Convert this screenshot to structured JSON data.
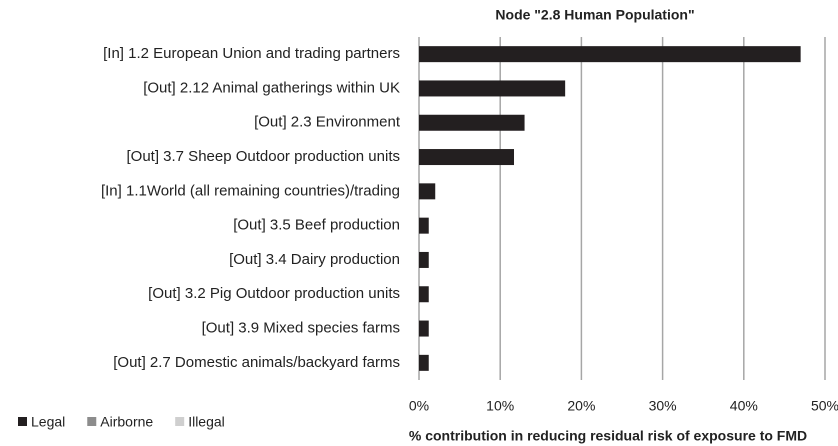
{
  "chart_data": {
    "type": "stacked_horizontal_bar",
    "title": "Node \"2.8 Human Population\"",
    "x_label": "% contribution in reducing residual risk of exposure to FMD",
    "categories": [
      "[In] 1.2 European Union and trading partners",
      "[Out] 2.12 Animal gatherings within UK",
      "[Out] 2.3 Environment",
      "[Out] 3.7 Sheep Outdoor production units",
      "[In] 1.1World (all remaining countries)/trading",
      "[Out] 3.5 Beef production",
      "[Out] 3.4 Dairy production",
      "[Out] 3.2 Pig Outdoor production units",
      "[Out] 3.9 Mixed species farms",
      "[Out] 2.7 Domestic animals/backyard farms"
    ],
    "series": [
      {
        "name": "Legal",
        "color": "#231f20",
        "values": [
          47,
          18,
          13,
          11.7,
          2,
          1.2,
          1.2,
          1.2,
          1.2,
          1.2
        ]
      },
      {
        "name": "Airborne",
        "color": "#8c8c8c",
        "values": [
          0,
          0,
          0,
          0,
          0,
          0,
          0,
          0,
          0,
          0
        ]
      },
      {
        "name": "Illegal",
        "color": "#cfcfcf",
        "values": [
          0,
          0,
          0,
          0,
          0,
          0,
          0,
          0,
          0,
          0
        ]
      }
    ],
    "xlim": [
      0,
      50
    ],
    "xticks": [
      {
        "value": 0,
        "label": "0%"
      },
      {
        "value": 10,
        "label": "10%"
      },
      {
        "value": 20,
        "label": "20%"
      },
      {
        "value": 30,
        "label": "30%"
      },
      {
        "value": 40,
        "label": "40%"
      },
      {
        "value": 50,
        "label": "50%"
      }
    ],
    "grid": true,
    "legend": "bottom-left"
  }
}
